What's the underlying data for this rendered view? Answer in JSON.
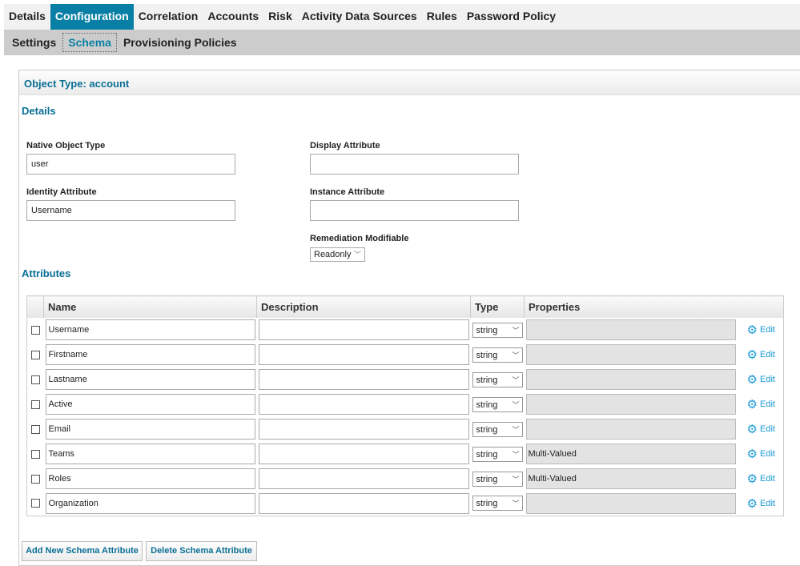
{
  "tabs": [
    "Details",
    "Configuration",
    "Correlation",
    "Accounts",
    "Risk",
    "Activity Data Sources",
    "Rules",
    "Password Policy"
  ],
  "active_tab": "Configuration",
  "subtabs": [
    "Settings",
    "Schema",
    "Provisioning Policies"
  ],
  "active_subtab": "Schema",
  "panel": {
    "title": "Object Type: account",
    "details_heading": "Details",
    "attributes_heading": "Attributes"
  },
  "fields": {
    "native_object_type": {
      "label": "Native Object Type",
      "value": "user"
    },
    "display_attribute": {
      "label": "Display Attribute",
      "value": ""
    },
    "identity_attribute": {
      "label": "Identity Attribute",
      "value": "Username"
    },
    "instance_attribute": {
      "label": "Instance Attribute",
      "value": ""
    },
    "remediation_modifiable": {
      "label": "Remediation Modifiable",
      "value": "Readonly"
    }
  },
  "table": {
    "headers": [
      "Name",
      "Description",
      "Type",
      "Properties"
    ],
    "edit_label": "Edit",
    "rows": [
      {
        "name": "Username",
        "description": "",
        "type": "string",
        "properties": ""
      },
      {
        "name": "Firstname",
        "description": "",
        "type": "string",
        "properties": ""
      },
      {
        "name": "Lastname",
        "description": "",
        "type": "string",
        "properties": ""
      },
      {
        "name": "Active",
        "description": "",
        "type": "string",
        "properties": ""
      },
      {
        "name": "Email",
        "description": "",
        "type": "string",
        "properties": ""
      },
      {
        "name": "Teams",
        "description": "",
        "type": "string",
        "properties": "Multi-Valued"
      },
      {
        "name": "Roles",
        "description": "",
        "type": "string",
        "properties": "Multi-Valued"
      },
      {
        "name": "Organization",
        "description": "",
        "type": "string",
        "properties": ""
      }
    ]
  },
  "buttons": {
    "add": "Add New Schema Attribute",
    "delete": "Delete Schema Attribute"
  },
  "colors": {
    "accent": "#0a7fa5",
    "link": "#1a9ad6"
  }
}
